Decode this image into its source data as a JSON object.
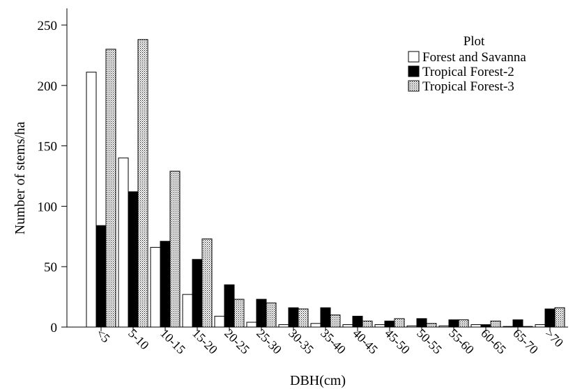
{
  "chart_data": {
    "type": "bar",
    "title": "",
    "xlabel": "DBH(cm)",
    "ylabel": "Number of stems/ha",
    "ylim": [
      0,
      250
    ],
    "yticks": [
      0,
      50,
      100,
      150,
      200,
      250
    ],
    "grid": false,
    "legend": {
      "title": "Plot",
      "placement": "top-right"
    },
    "categories": [
      "<5",
      "5-10",
      "10-15",
      "15-20",
      "20-25",
      "25-30",
      "30-35",
      "35-40",
      "40-45",
      "45-50",
      "50-55",
      "55-60",
      "60-65",
      "65-70",
      ">70"
    ],
    "series": [
      {
        "name": "Forest and Savanna",
        "fill": "white",
        "values": [
          211,
          140,
          66,
          27,
          9,
          4,
          2,
          3,
          2,
          2,
          1,
          1,
          2,
          0.5,
          2
        ]
      },
      {
        "name": "Tropical Forest-2",
        "fill": "black",
        "values": [
          84,
          112,
          71,
          56,
          35,
          23,
          16,
          16,
          9,
          5,
          7,
          6,
          2,
          6,
          15
        ]
      },
      {
        "name": "Tropical Forest-3",
        "fill": "dotted",
        "values": [
          230,
          238,
          129,
          73,
          23,
          20,
          15,
          10,
          5,
          7,
          3,
          6,
          5,
          0.5,
          16
        ]
      }
    ]
  }
}
